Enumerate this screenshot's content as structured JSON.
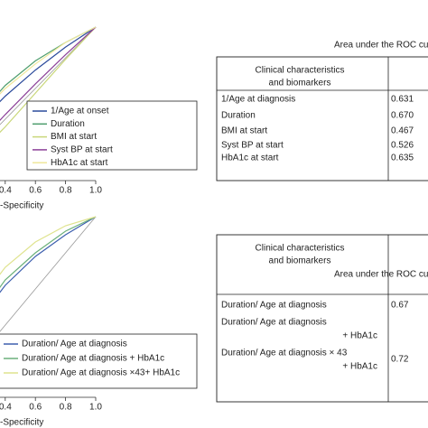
{
  "chart_data": [
    {
      "type": "line",
      "xlabel": "-Specificity",
      "xlim": [
        0,
        1
      ],
      "ylim": [
        0,
        1
      ],
      "xticks": [
        0.4,
        0.6,
        0.8,
        {
          "value": 1,
          "label": "1.0"
        }
      ],
      "x": [
        0,
        0.2,
        0.4,
        0.6,
        0.8,
        1
      ],
      "series": [
        {
          "name": "1/Age at onset",
          "color": "#2b4a9b",
          "values": [
            0,
            0.35,
            0.55,
            0.72,
            0.87,
            1
          ]
        },
        {
          "name": "Duration",
          "color": "#4f9e6e",
          "values": [
            0,
            0.4,
            0.62,
            0.78,
            0.9,
            1
          ]
        },
        {
          "name": "BMI at start",
          "color": "#c9d77a",
          "values": [
            0,
            0.15,
            0.35,
            0.57,
            0.79,
            1
          ]
        },
        {
          "name": "Syst BP at start",
          "color": "#8b3f98",
          "values": [
            0,
            0.22,
            0.43,
            0.63,
            0.82,
            1
          ]
        },
        {
          "name": "HbA1c at start",
          "color": "#efe79a",
          "values": [
            0,
            0.4,
            0.6,
            0.76,
            0.9,
            1
          ]
        }
      ]
    },
    {
      "type": "line",
      "xlabel": "-Specificity",
      "xlim": [
        0,
        1
      ],
      "ylim": [
        0,
        1
      ],
      "xticks": [
        0.4,
        0.6,
        0.8,
        {
          "value": 1,
          "label": "1.0"
        }
      ],
      "x": [
        0,
        0.2,
        0.4,
        0.6,
        0.8,
        1
      ],
      "series": [
        {
          "name": "Duration/ Age at diagnosis",
          "color": "#3d5fae",
          "values": [
            0,
            0.4,
            0.62,
            0.78,
            0.9,
            1
          ]
        },
        {
          "name": "Duration/ Age at diagnosis + HbA1c",
          "color": "#6bb07a",
          "values": [
            0,
            0.42,
            0.65,
            0.8,
            0.92,
            1
          ]
        },
        {
          "name": "Duration/ Age at diagnosis ×43+ HbA1c",
          "color": "#dfe38e",
          "values": [
            0,
            0.5,
            0.72,
            0.86,
            0.95,
            1
          ]
        }
      ]
    }
  ],
  "tables": [
    {
      "title": "Area under the ROC curv",
      "header": [
        "Clinical characteristics",
        "and biomarkers"
      ],
      "rows": [
        {
          "label": [
            "1/Age at diagnosis"
          ],
          "value": "0.631"
        },
        {
          "label": [
            "Duration"
          ],
          "value": "0.670"
        },
        {
          "label": [
            "BMI at start"
          ],
          "value": "0.467"
        },
        {
          "label": [
            "Syst BP at start"
          ],
          "value": "0.526"
        },
        {
          "label": [
            "HbA1c at start"
          ],
          "value": "0.635"
        }
      ]
    },
    {
      "title": "Area under the ROC curv",
      "header": [
        "Clinical characteristics",
        "and biomarkers"
      ],
      "rows": [
        {
          "label": [
            "Duration/ Age at diagnosis"
          ],
          "value": "0.67"
        },
        {
          "label": [
            "Duration/ Age at diagnosis",
            "+ HbA1c"
          ]
        },
        {
          "label": [
            "Duration/ Age at diagnosis × 43",
            "+ HbA1c"
          ],
          "value": "0.72"
        }
      ]
    }
  ]
}
